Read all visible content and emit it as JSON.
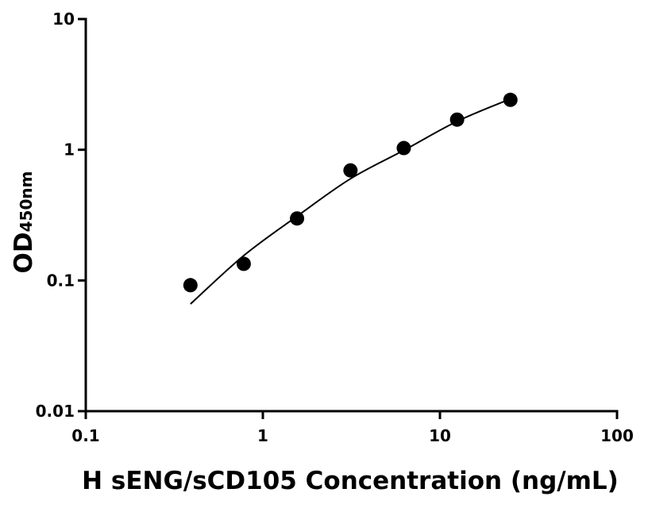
{
  "chart_data": {
    "type": "scatter",
    "xlabel": "H sENG/sCD105 Concentration (ng/mL)",
    "ylabel": "OD",
    "ylabel_sub": "450nm",
    "xscale": "log",
    "yscale": "log",
    "xlim": [
      0.1,
      100
    ],
    "xticks": [
      0.1,
      1,
      10,
      100
    ],
    "ylim": [
      0.01,
      10
    ],
    "yticks": [
      0.01,
      0.1,
      1,
      10
    ],
    "x": [
      0.39,
      0.78,
      1.56,
      3.125,
      6.25,
      12.5,
      25
    ],
    "series": [
      {
        "mode": "markers",
        "color": "#000000",
        "values": [
          0.092,
          0.134,
          0.298,
          0.695,
          1.03,
          1.7,
          2.41
        ]
      },
      {
        "mode": "line",
        "color": "#000000",
        "values": [
          0.066,
          0.155,
          0.31,
          0.6,
          0.99,
          1.65,
          2.45
        ]
      }
    ]
  }
}
